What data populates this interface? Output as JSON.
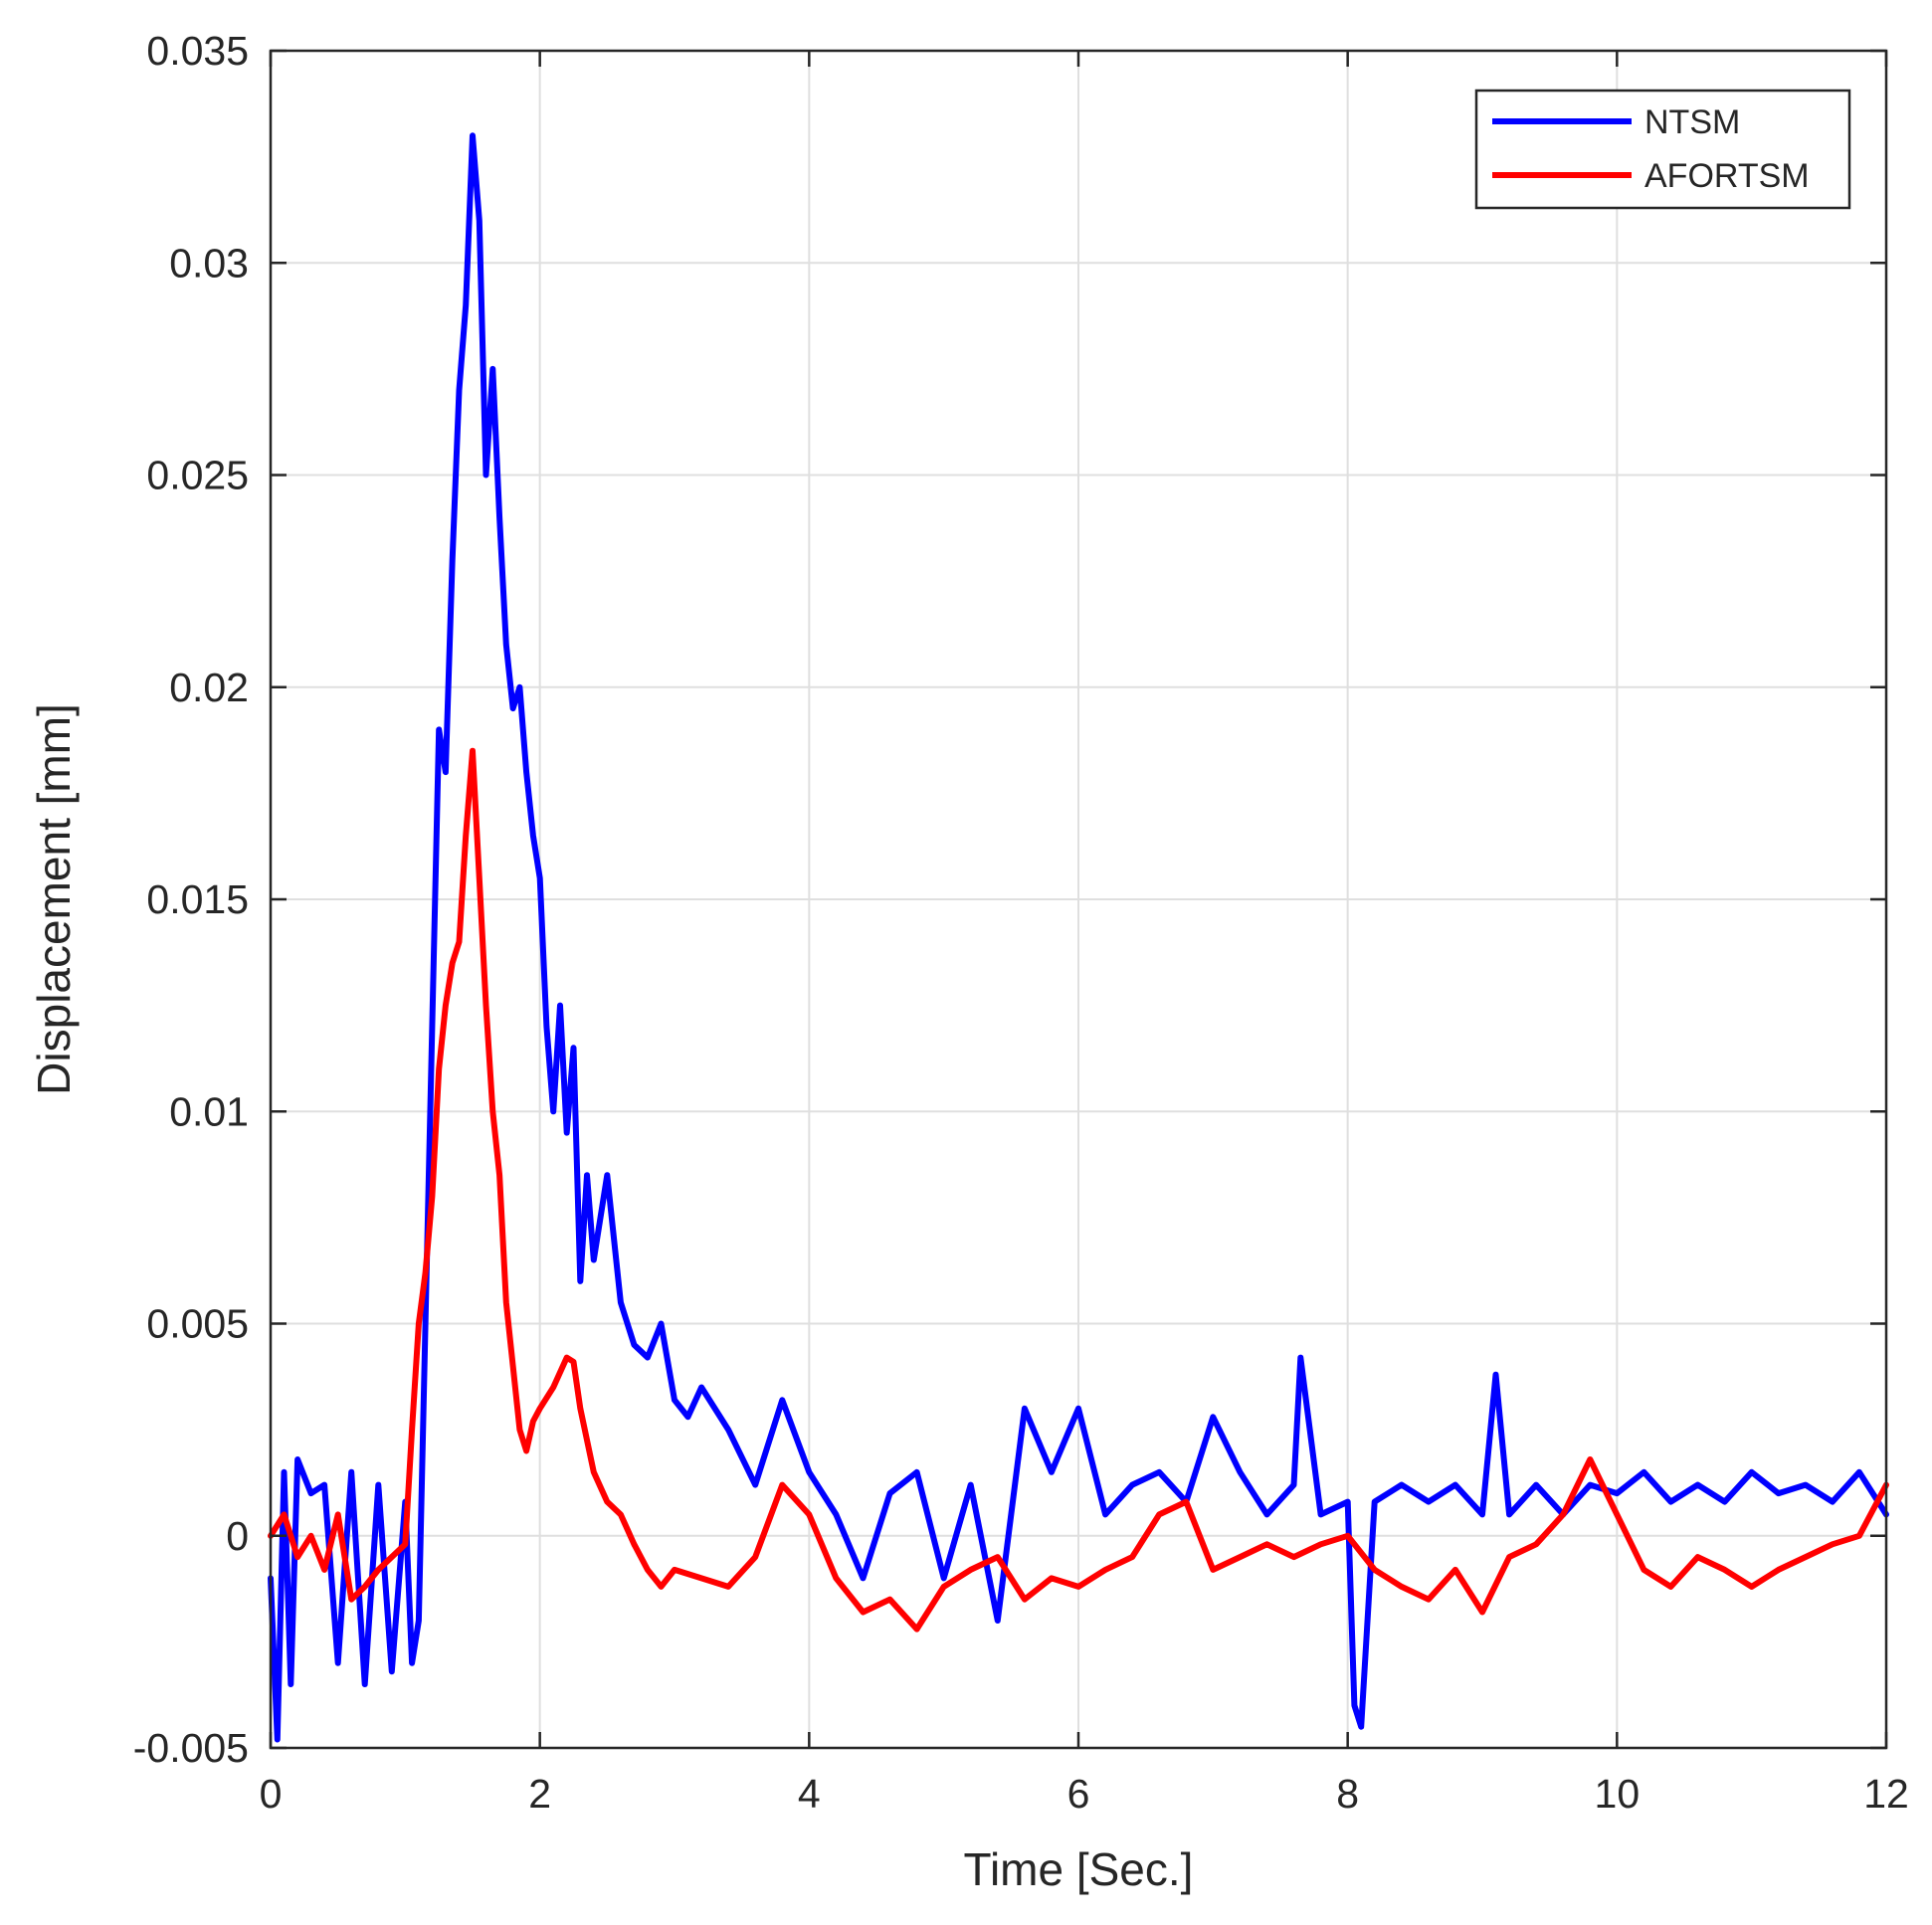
{
  "chart_data": {
    "type": "line",
    "title": "",
    "xlabel": "Time [Sec.]",
    "ylabel": "Displacement [mm]",
    "xlim": [
      0,
      12
    ],
    "ylim": [
      -0.005,
      0.035
    ],
    "xticks": [
      0,
      2,
      4,
      6,
      8,
      10,
      12
    ],
    "xtick_labels": [
      "0",
      "2",
      "4",
      "6",
      "8",
      "10",
      "12"
    ],
    "yticks": [
      -0.005,
      0,
      0.005,
      0.01,
      0.015,
      0.02,
      0.025,
      0.03,
      0.035
    ],
    "ytick_labels": [
      "-0.005",
      "0",
      "0.005",
      "0.01",
      "0.015",
      "0.02",
      "0.025",
      "0.03",
      "0.035"
    ],
    "grid": true,
    "legend_position": "top-right",
    "series": [
      {
        "name": "NTSM",
        "color": "#0000ff",
        "x": [
          0,
          0.05,
          0.1,
          0.15,
          0.2,
          0.3,
          0.4,
          0.5,
          0.6,
          0.7,
          0.8,
          0.9,
          1.0,
          1.05,
          1.1,
          1.15,
          1.2,
          1.25,
          1.3,
          1.35,
          1.4,
          1.45,
          1.5,
          1.55,
          1.6,
          1.65,
          1.7,
          1.75,
          1.8,
          1.85,
          1.9,
          1.95,
          2.0,
          2.05,
          2.1,
          2.15,
          2.2,
          2.25,
          2.3,
          2.35,
          2.4,
          2.5,
          2.6,
          2.7,
          2.8,
          2.9,
          3.0,
          3.1,
          3.2,
          3.4,
          3.6,
          3.8,
          4.0,
          4.2,
          4.4,
          4.6,
          4.8,
          5.0,
          5.2,
          5.4,
          5.6,
          5.8,
          6.0,
          6.2,
          6.4,
          6.6,
          6.8,
          7.0,
          7.2,
          7.4,
          7.6,
          7.65,
          7.8,
          8.0,
          8.05,
          8.1,
          8.2,
          8.4,
          8.6,
          8.8,
          9.0,
          9.1,
          9.2,
          9.4,
          9.6,
          9.8,
          10.0,
          10.2,
          10.4,
          10.6,
          10.8,
          11.0,
          11.2,
          11.4,
          11.6,
          11.8,
          12.0
        ],
        "values": [
          -0.001,
          -0.0048,
          0.0015,
          -0.0035,
          0.0018,
          0.001,
          0.0012,
          -0.003,
          0.0015,
          -0.0035,
          0.0012,
          -0.0032,
          0.0008,
          -0.003,
          -0.002,
          0.005,
          0.012,
          0.019,
          0.018,
          0.023,
          0.027,
          0.029,
          0.033,
          0.031,
          0.025,
          0.0275,
          0.024,
          0.021,
          0.0195,
          0.02,
          0.018,
          0.0165,
          0.0155,
          0.012,
          0.01,
          0.0125,
          0.0095,
          0.0115,
          0.006,
          0.0085,
          0.0065,
          0.0085,
          0.0055,
          0.0045,
          0.0042,
          0.005,
          0.0032,
          0.0028,
          0.0035,
          0.0025,
          0.0012,
          0.0032,
          0.0015,
          0.0005,
          -0.001,
          0.001,
          0.0015,
          -0.001,
          0.0012,
          -0.002,
          0.003,
          0.0015,
          0.003,
          0.0005,
          0.0012,
          0.0015,
          0.0008,
          0.0028,
          0.0015,
          0.0005,
          0.0012,
          0.0042,
          0.0005,
          0.0008,
          -0.004,
          -0.0045,
          0.0008,
          0.0012,
          0.0008,
          0.0012,
          0.0005,
          0.0038,
          0.0005,
          0.0012,
          0.0005,
          0.0012,
          0.001,
          0.0015,
          0.0008,
          0.0012,
          0.0008,
          0.0015,
          0.001,
          0.0012,
          0.0008,
          0.0015,
          0.0005
        ]
      },
      {
        "name": "AFORTSM",
        "color": "#ff0000",
        "x": [
          0,
          0.1,
          0.2,
          0.3,
          0.4,
          0.5,
          0.6,
          0.7,
          0.8,
          0.9,
          1.0,
          1.05,
          1.1,
          1.15,
          1.2,
          1.25,
          1.3,
          1.35,
          1.4,
          1.45,
          1.5,
          1.55,
          1.6,
          1.65,
          1.7,
          1.75,
          1.8,
          1.85,
          1.9,
          1.95,
          2.0,
          2.1,
          2.2,
          2.25,
          2.3,
          2.4,
          2.5,
          2.6,
          2.7,
          2.8,
          2.9,
          3.0,
          3.2,
          3.4,
          3.6,
          3.8,
          4.0,
          4.2,
          4.4,
          4.6,
          4.8,
          5.0,
          5.2,
          5.4,
          5.6,
          5.8,
          6.0,
          6.2,
          6.4,
          6.6,
          6.8,
          7.0,
          7.2,
          7.4,
          7.6,
          7.8,
          8.0,
          8.2,
          8.4,
          8.6,
          8.8,
          9.0,
          9.2,
          9.4,
          9.6,
          9.8,
          10.0,
          10.2,
          10.4,
          10.6,
          10.8,
          11.0,
          11.2,
          11.4,
          11.6,
          11.8,
          12.0
        ],
        "values": [
          0.0,
          0.0005,
          -0.0005,
          0.0,
          -0.0008,
          0.0005,
          -0.0015,
          -0.0012,
          -0.0008,
          -0.0005,
          -0.0002,
          0.0025,
          0.005,
          0.0062,
          0.008,
          0.011,
          0.0125,
          0.0135,
          0.014,
          0.0165,
          0.0185,
          0.0155,
          0.0125,
          0.01,
          0.0085,
          0.0055,
          0.004,
          0.0025,
          0.002,
          0.0027,
          0.003,
          0.0035,
          0.0042,
          0.0041,
          0.003,
          0.0015,
          0.0008,
          0.0005,
          -0.0002,
          -0.0008,
          -0.0012,
          -0.0008,
          -0.001,
          -0.0012,
          -0.0005,
          0.0012,
          0.0005,
          -0.001,
          -0.0018,
          -0.0015,
          -0.0022,
          -0.0012,
          -0.0008,
          -0.0005,
          -0.0015,
          -0.001,
          -0.0012,
          -0.0008,
          -0.0005,
          0.0005,
          0.0008,
          -0.0008,
          -0.0005,
          -0.0002,
          -0.0005,
          -0.0002,
          0.0,
          -0.0008,
          -0.0012,
          -0.0015,
          -0.0008,
          -0.0018,
          -0.0005,
          -0.0002,
          0.0005,
          0.0018,
          0.0005,
          -0.0008,
          -0.0012,
          -0.0005,
          -0.0008,
          -0.0012,
          -0.0008,
          -0.0005,
          -0.0002,
          0.0,
          0.0012
        ]
      }
    ]
  }
}
